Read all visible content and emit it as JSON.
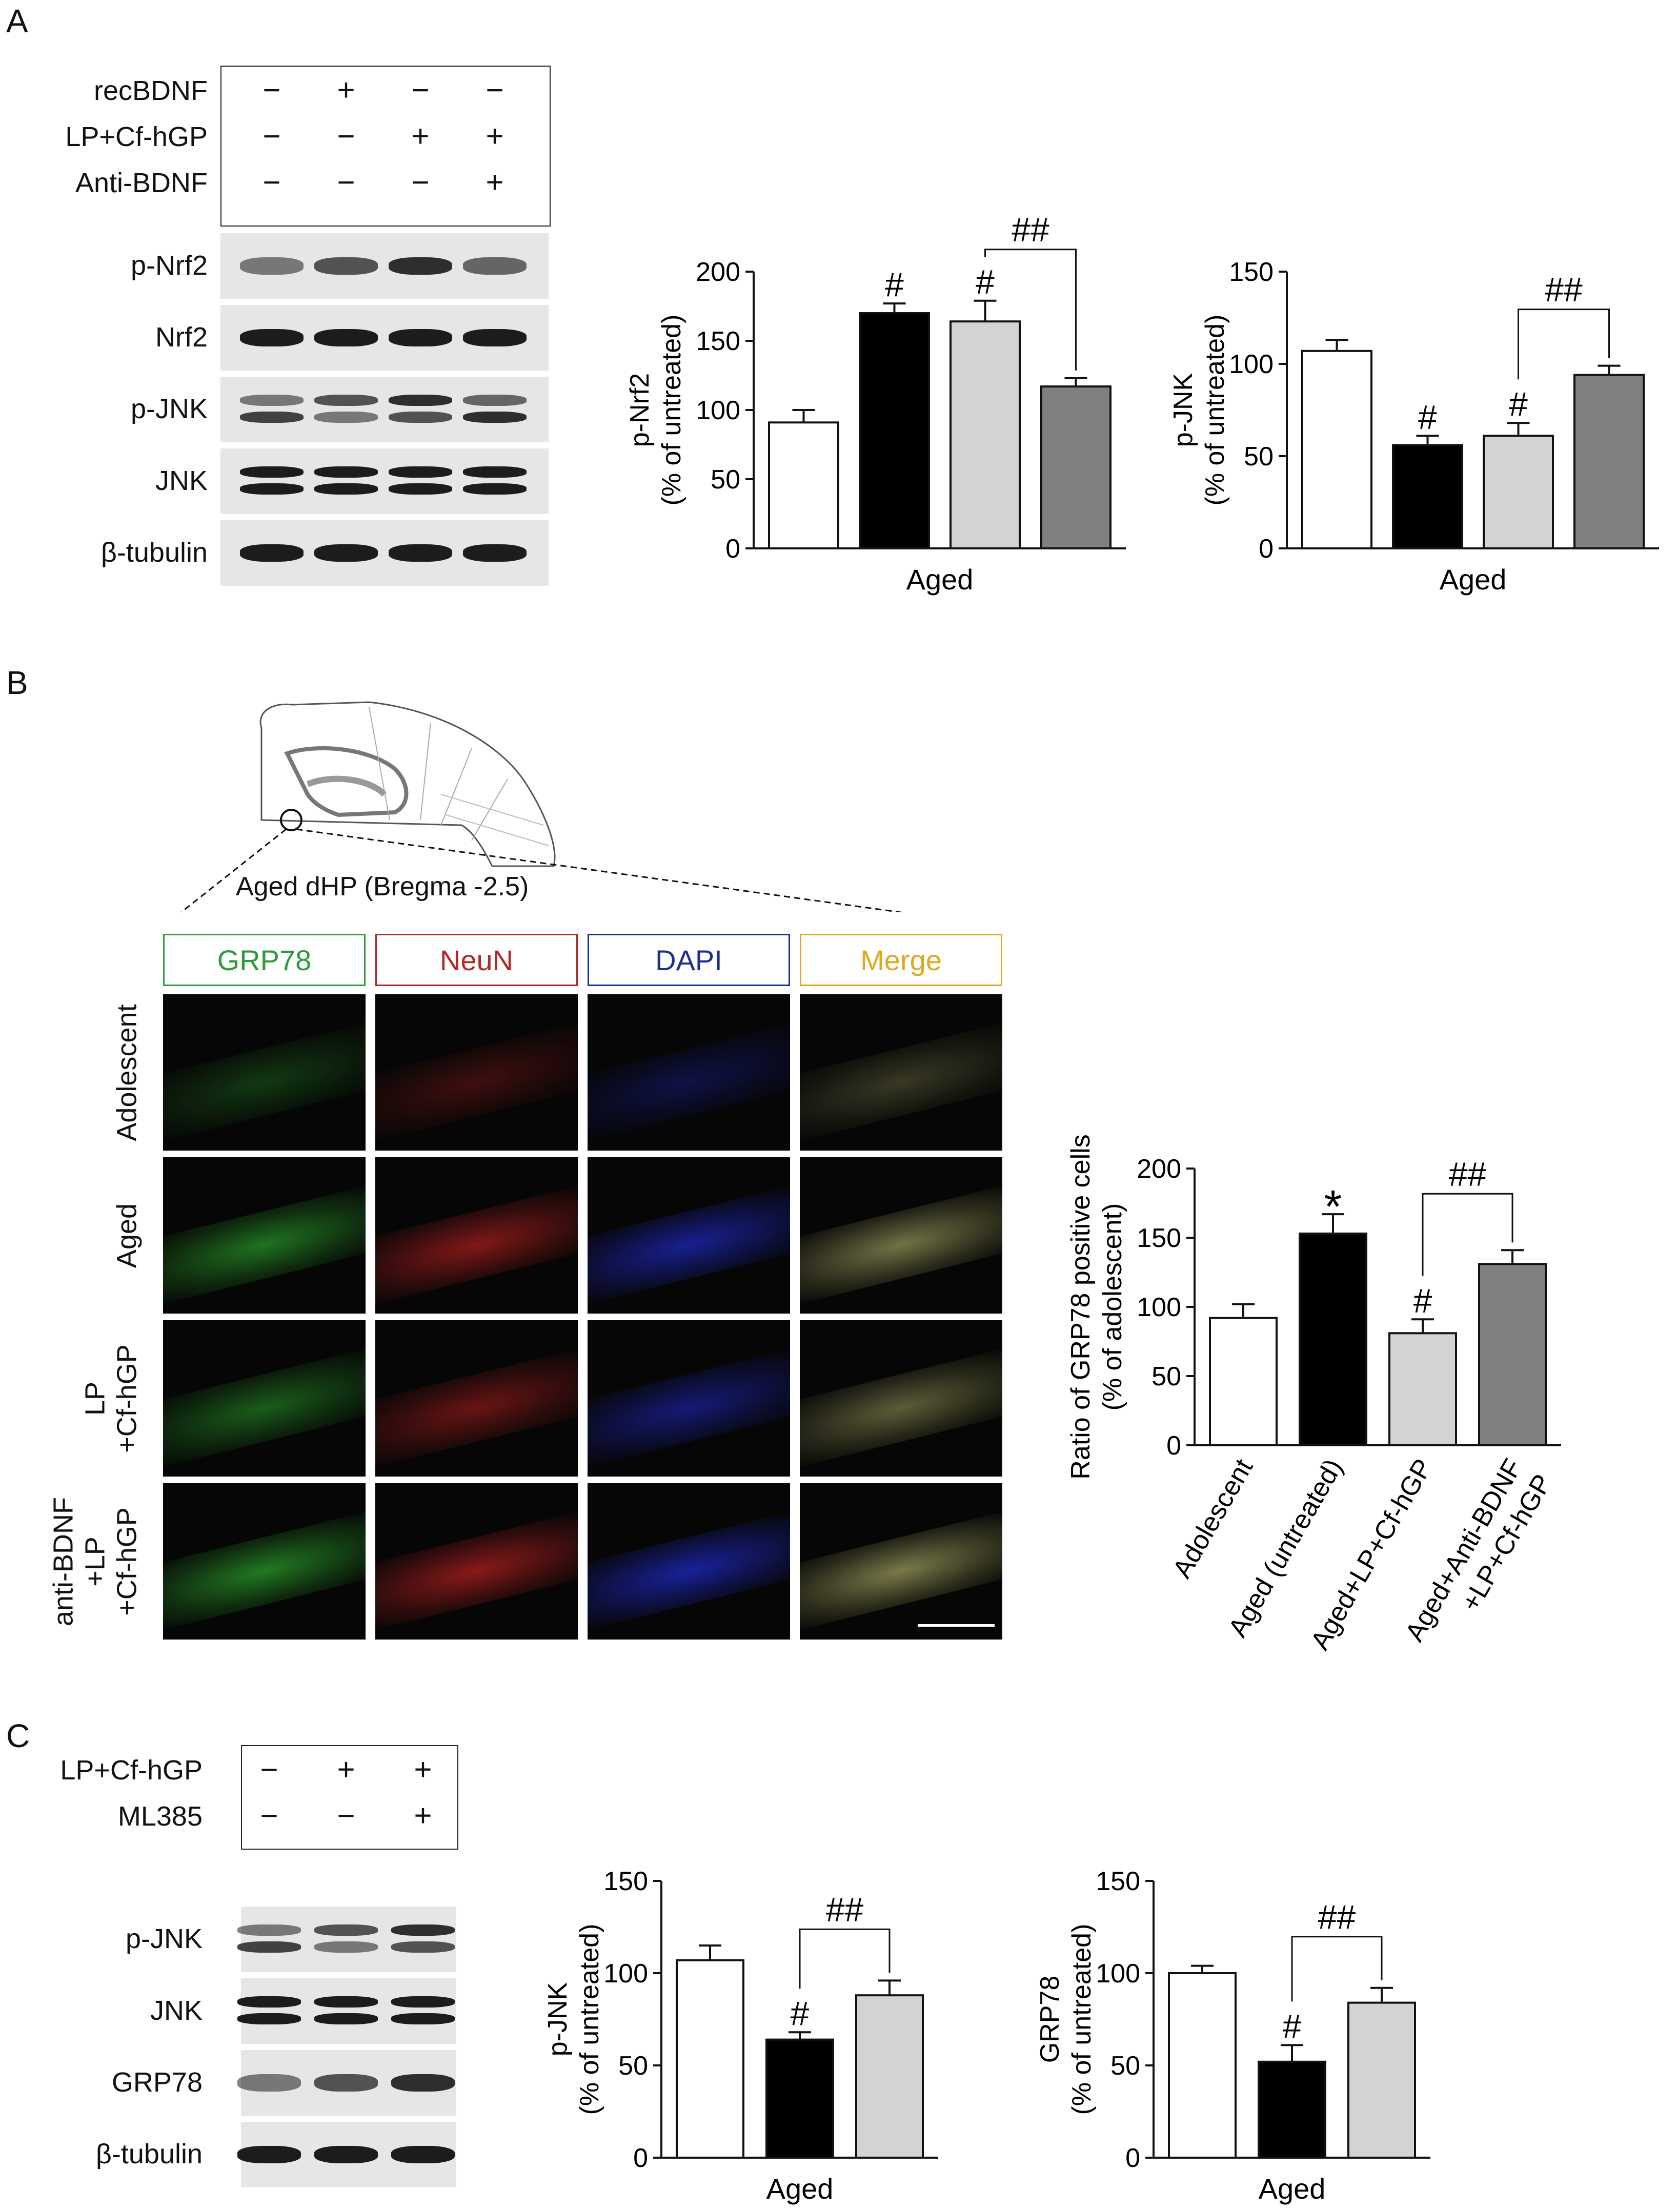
{
  "panels": {
    "a": {
      "letter": "A"
    },
    "b": {
      "letter": "B"
    },
    "c": {
      "letter": "C"
    }
  },
  "blotA": {
    "treatments": [
      {
        "name": "recBDNF",
        "signs": [
          "−",
          "+",
          "−",
          "−"
        ]
      },
      {
        "name": "LP+Cf-hGP",
        "signs": [
          "−",
          "−",
          "+",
          "+"
        ]
      },
      {
        "name": "Anti-BDNF",
        "signs": [
          "−",
          "−",
          "−",
          "+"
        ]
      }
    ],
    "rows": [
      "p-Nrf2",
      "Nrf2",
      "p-JNK",
      "JNK",
      "β-tubulin"
    ]
  },
  "blotC": {
    "treatments": [
      {
        "name": "LP+Cf-hGP",
        "signs": [
          "−",
          "+",
          "+"
        ]
      },
      {
        "name": "ML385",
        "signs": [
          "−",
          "−",
          "+"
        ]
      }
    ],
    "rows": [
      "p-JNK",
      "JNK",
      "GRP78",
      "β-tubulin"
    ]
  },
  "micro": {
    "atlas_label": "Aged dHP (Bregma -2.5)",
    "channels": [
      {
        "name": "GRP78",
        "color": "#2e9a3a"
      },
      {
        "name": "NeuN",
        "color": "#b02a2a"
      },
      {
        "name": "DAPI",
        "color": "#1d2f8f"
      },
      {
        "name": "Merge",
        "color": "#e0a820"
      }
    ],
    "rows": [
      {
        "lines": [
          "Adolescent"
        ]
      },
      {
        "lines": [
          "Aged"
        ]
      },
      {
        "lines": [
          "LP",
          "+Cf-hGP"
        ]
      },
      {
        "lines": [
          "anti-BDNF",
          "+LP",
          "+Cf-hGP"
        ]
      }
    ]
  },
  "chart_data": [
    {
      "type": "bar",
      "panel": "A",
      "ylabel": [
        "p-Nrf2",
        "(% of untreated)"
      ],
      "xlabel": "Aged",
      "ylim": [
        0,
        200
      ],
      "yticks": [
        0,
        50,
        100,
        150,
        200
      ],
      "values": [
        91,
        170,
        164,
        117
      ],
      "errors": [
        9,
        7,
        15,
        6
      ],
      "fills": [
        "#ffffff",
        "#000000",
        "#d3d3d3",
        "#808080"
      ],
      "marks": [
        "",
        "#",
        "#",
        ""
      ],
      "brackets": [
        {
          "from": 2,
          "to": 3,
          "label": "##"
        }
      ]
    },
    {
      "type": "bar",
      "panel": "A",
      "ylabel": [
        "p-JNK",
        "(% of untreated)"
      ],
      "xlabel": "Aged",
      "ylim": [
        0,
        150
      ],
      "yticks": [
        0,
        50,
        100,
        150
      ],
      "values": [
        107,
        56,
        61,
        94
      ],
      "errors": [
        6,
        5,
        7,
        5
      ],
      "fills": [
        "#ffffff",
        "#000000",
        "#d3d3d3",
        "#808080"
      ],
      "marks": [
        "",
        "#",
        "#",
        ""
      ],
      "brackets": [
        {
          "from": 2,
          "to": 3,
          "label": "##"
        }
      ]
    },
    {
      "type": "bar",
      "panel": "B",
      "ylabel": [
        "Ratio of GRP78 positive cells",
        "(% of adolescent)"
      ],
      "xlabel": "",
      "ylim": [
        0,
        200
      ],
      "yticks": [
        0,
        50,
        100,
        150,
        200
      ],
      "categories": [
        "Adolescent",
        "Aged (untreated)",
        "Aged+LP+Cf-hGP",
        [
          "Aged+Anti-BDNF",
          "+LP+Cf-hGP"
        ]
      ],
      "values": [
        92,
        153,
        81,
        131
      ],
      "errors": [
        10,
        14,
        10,
        10
      ],
      "fills": [
        "#ffffff",
        "#000000",
        "#d3d3d3",
        "#808080"
      ],
      "marks": [
        "",
        "*",
        "#",
        ""
      ],
      "brackets": [
        {
          "from": 2,
          "to": 3,
          "label": "##"
        }
      ]
    },
    {
      "type": "bar",
      "panel": "C",
      "ylabel": [
        "p-JNK",
        "(% of untreated)"
      ],
      "xlabel": "Aged",
      "ylim": [
        0,
        150
      ],
      "yticks": [
        0,
        50,
        100,
        150
      ],
      "values": [
        107,
        64,
        88
      ],
      "errors": [
        8,
        4,
        8
      ],
      "fills": [
        "#ffffff",
        "#000000",
        "#d3d3d3"
      ],
      "marks": [
        "",
        "#",
        ""
      ],
      "brackets": [
        {
          "from": 1,
          "to": 2,
          "label": "##"
        }
      ]
    },
    {
      "type": "bar",
      "panel": "C",
      "ylabel": [
        "GRP78",
        "(% of untreated)"
      ],
      "xlabel": "Aged",
      "ylim": [
        0,
        150
      ],
      "yticks": [
        0,
        50,
        100,
        150
      ],
      "values": [
        100,
        52,
        84
      ],
      "errors": [
        4,
        9,
        8
      ],
      "fills": [
        "#ffffff",
        "#000000",
        "#d3d3d3"
      ],
      "marks": [
        "",
        "#",
        ""
      ],
      "brackets": [
        {
          "from": 1,
          "to": 2,
          "label": "##"
        }
      ]
    }
  ]
}
